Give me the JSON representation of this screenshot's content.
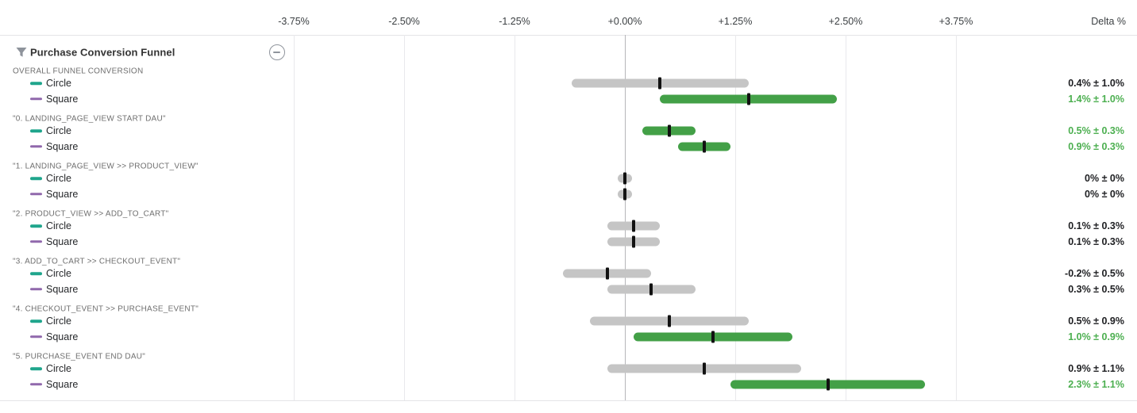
{
  "axis": {
    "title": "Delta %",
    "ticks": [
      "-3.75%",
      "-2.50%",
      "-1.25%",
      "+0.00%",
      "+1.25%",
      "+2.50%",
      "+3.75%"
    ]
  },
  "panel": {
    "title": "Purchase Conversion Funnel",
    "filter_icon": "funnel-filter-icon",
    "collapse_icon": "minus-circle-icon"
  },
  "colors": {
    "bar_neutral": "#c5c5c5",
    "bar_significant": "#43a047",
    "value_significant_text": "#4caf50",
    "value_neutral_text": "#202124",
    "circle_series": "#1fa58c",
    "square_series": "#9068ac",
    "point_tick": "#121212"
  },
  "chart_data": {
    "type": "interval",
    "title": "Purchase Conversion Funnel",
    "xlabel": "Delta %",
    "x_ticks_pct": [
      -3.75,
      -2.5,
      -1.25,
      0,
      1.25,
      2.5,
      3.75
    ],
    "xlim_pct": [
      -4.69,
      5.2
    ],
    "grid": true,
    "legend": [
      {
        "name": "Circle",
        "color": "#1fa58c"
      },
      {
        "name": "Square",
        "color": "#9068ac"
      }
    ],
    "groups": [
      {
        "label": "OVERALL FUNNEL CONVERSION",
        "rows": [
          {
            "variant": "Circle",
            "delta_pct": 0.4,
            "moe_pct": 1.0,
            "display": "0.4% ± 1.0%",
            "significant": false
          },
          {
            "variant": "Square",
            "delta_pct": 1.4,
            "moe_pct": 1.0,
            "display": "1.4% ± 1.0%",
            "significant": true
          }
        ]
      },
      {
        "label": "\"0. LANDING_PAGE_VIEW START DAU\"",
        "rows": [
          {
            "variant": "Circle",
            "delta_pct": 0.5,
            "moe_pct": 0.3,
            "display": "0.5% ± 0.3%",
            "significant": true
          },
          {
            "variant": "Square",
            "delta_pct": 0.9,
            "moe_pct": 0.3,
            "display": "0.9% ± 0.3%",
            "significant": true
          }
        ]
      },
      {
        "label": "\"1. LANDING_PAGE_VIEW >> PRODUCT_VIEW\"",
        "rows": [
          {
            "variant": "Circle",
            "delta_pct": 0,
            "moe_pct": 0,
            "display": "0% ± 0%",
            "significant": false
          },
          {
            "variant": "Square",
            "delta_pct": 0,
            "moe_pct": 0,
            "display": "0% ± 0%",
            "significant": false
          }
        ]
      },
      {
        "label": "\"2. PRODUCT_VIEW >> ADD_TO_CART\"",
        "rows": [
          {
            "variant": "Circle",
            "delta_pct": 0.1,
            "moe_pct": 0.3,
            "display": "0.1% ± 0.3%",
            "significant": false
          },
          {
            "variant": "Square",
            "delta_pct": 0.1,
            "moe_pct": 0.3,
            "display": "0.1% ± 0.3%",
            "significant": false
          }
        ]
      },
      {
        "label": "\"3. ADD_TO_CART >> CHECKOUT_EVENT\"",
        "rows": [
          {
            "variant": "Circle",
            "delta_pct": -0.2,
            "moe_pct": 0.5,
            "display": "-0.2% ± 0.5%",
            "significant": false
          },
          {
            "variant": "Square",
            "delta_pct": 0.3,
            "moe_pct": 0.5,
            "display": "0.3% ± 0.5%",
            "significant": false
          }
        ]
      },
      {
        "label": "\"4. CHECKOUT_EVENT >> PURCHASE_EVENT\"",
        "rows": [
          {
            "variant": "Circle",
            "delta_pct": 0.5,
            "moe_pct": 0.9,
            "display": "0.5% ± 0.9%",
            "significant": false
          },
          {
            "variant": "Square",
            "delta_pct": 1.0,
            "moe_pct": 0.9,
            "display": "1.0% ± 0.9%",
            "significant": true
          }
        ]
      },
      {
        "label": "\"5. PURCHASE_EVENT END DAU\"",
        "rows": [
          {
            "variant": "Circle",
            "delta_pct": 0.9,
            "moe_pct": 1.1,
            "display": "0.9% ± 1.1%",
            "significant": false
          },
          {
            "variant": "Square",
            "delta_pct": 2.3,
            "moe_pct": 1.1,
            "display": "2.3% ± 1.1%",
            "significant": true
          }
        ]
      }
    ]
  }
}
